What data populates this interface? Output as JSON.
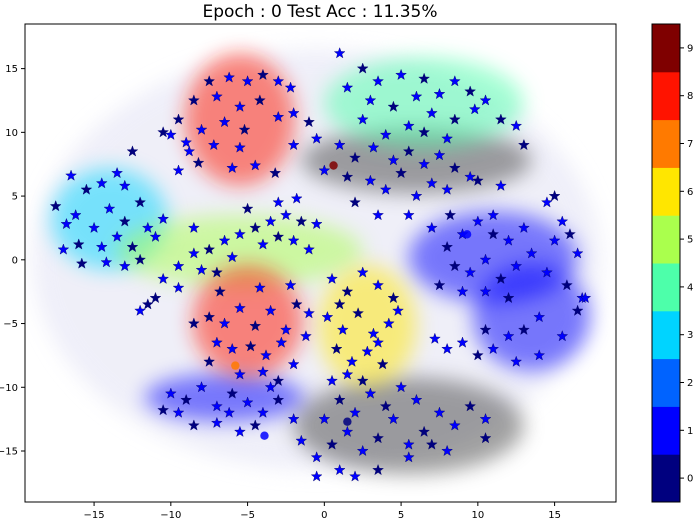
{
  "chart_data": {
    "type": "scatter",
    "title": "Epoch : 0  Test Acc : 11.35%",
    "xlabel": "",
    "ylabel": "",
    "xlim": [
      -19.5,
      19.0
    ],
    "ylim": [
      -19.0,
      18.5
    ],
    "xticks": [
      -15,
      -10,
      -5,
      0,
      5,
      10,
      15
    ],
    "yticks": [
      -15,
      -10,
      -5,
      0,
      5,
      10,
      15
    ],
    "colormap": "jet",
    "colorbar": {
      "ticks": [
        "0",
        "1",
        "2",
        "3",
        "4",
        "5",
        "6",
        "7",
        "8",
        "9"
      ],
      "colors": [
        "#00007f",
        "#0000ff",
        "#0063ff",
        "#00d4ff",
        "#4dffaa",
        "#aaff4d",
        "#ffe600",
        "#ff7a00",
        "#ff1300",
        "#7f0000"
      ]
    },
    "clusters": [
      {
        "label": 0,
        "color": "#00007f",
        "cx": 5.5,
        "cy": -13.0,
        "rx": 7.5,
        "ry": 3.8
      },
      {
        "label": 0,
        "color": "#00007f",
        "cx": 6.0,
        "cy": 7.8,
        "rx": 7.5,
        "ry": 2.6
      },
      {
        "label": 1,
        "color": "#0000ff",
        "cx": 11.0,
        "cy": 0.2,
        "rx": 5.5,
        "ry": 3.6
      },
      {
        "label": 1,
        "color": "#0000ff",
        "cx": 13.5,
        "cy": -4.5,
        "rx": 3.8,
        "ry": 4.2
      },
      {
        "label": 1,
        "color": "#0000ff",
        "cx": -6.5,
        "cy": -10.8,
        "rx": 5.2,
        "ry": 1.9
      },
      {
        "label": 3,
        "color": "#00d4ff",
        "cx": -14.0,
        "cy": 3.2,
        "rx": 3.8,
        "ry": 4.0
      },
      {
        "label": 4,
        "color": "#4dffaa",
        "cx": 6.5,
        "cy": 12.3,
        "rx": 6.5,
        "ry": 3.6
      },
      {
        "label": 5,
        "color": "#aaff4d",
        "cx": -5.5,
        "cy": 0.7,
        "rx": 8.0,
        "ry": 2.8
      },
      {
        "label": 6,
        "color": "#ffe600",
        "cx": 2.8,
        "cy": -5.2,
        "rx": 3.2,
        "ry": 4.8
      },
      {
        "label": 8,
        "color": "#ff1300",
        "cx": -5.5,
        "cy": 11.0,
        "rx": 3.6,
        "ry": 5.2
      },
      {
        "label": 8,
        "color": "#ff1300",
        "cx": -5.0,
        "cy": -4.8,
        "rx": 3.6,
        "ry": 4.4
      }
    ],
    "stars": [
      [
        -7.5,
        14.0
      ],
      [
        -6.2,
        14.3
      ],
      [
        -5.0,
        14.0
      ],
      [
        -4.0,
        14.5
      ],
      [
        -3.0,
        14.0
      ],
      [
        -2.2,
        13.5
      ],
      [
        -8.5,
        12.5
      ],
      [
        -7.0,
        12.8
      ],
      [
        -5.5,
        12.0
      ],
      [
        -4.2,
        12.5
      ],
      [
        -3.0,
        11.2
      ],
      [
        -2.0,
        11.5
      ],
      [
        -9.5,
        11.0
      ],
      [
        -8.0,
        10.2
      ],
      [
        -6.5,
        10.8
      ],
      [
        -5.2,
        10.2
      ],
      [
        -7.2,
        9.0
      ],
      [
        -9.0,
        9.2
      ],
      [
        -8.2,
        7.6
      ],
      [
        -6.0,
        7.2
      ],
      [
        -4.5,
        7.4
      ],
      [
        -3.2,
        6.8
      ],
      [
        -9.5,
        7.0
      ],
      [
        -10.0,
        9.8
      ],
      [
        -10.5,
        10.0
      ],
      [
        -8.8,
        8.5
      ],
      [
        -5.5,
        8.8
      ],
      [
        -15.5,
        5.5
      ],
      [
        -14.5,
        6.0
      ],
      [
        -13.0,
        5.8
      ],
      [
        -12.0,
        4.5
      ],
      [
        -14.0,
        4.0
      ],
      [
        -15.0,
        2.5
      ],
      [
        -13.0,
        3.0
      ],
      [
        -11.5,
        2.5
      ],
      [
        -10.5,
        3.2
      ],
      [
        -16.0,
        1.2
      ],
      [
        -14.5,
        1.0
      ],
      [
        -13.5,
        1.8
      ],
      [
        -12.5,
        1.0
      ],
      [
        -11.0,
        1.8
      ],
      [
        -17.0,
        0.8
      ],
      [
        -15.8,
        -0.3
      ],
      [
        -14.2,
        -0.2
      ],
      [
        -13.0,
        -0.5
      ],
      [
        -12.0,
        0.0
      ],
      [
        -16.8,
        2.8
      ],
      [
        -16.2,
        3.5
      ],
      [
        -17.5,
        4.2
      ],
      [
        -13.5,
        6.8
      ],
      [
        -16.5,
        6.6
      ],
      [
        -12.5,
        8.5
      ],
      [
        -9.5,
        -0.5
      ],
      [
        -8.5,
        0.5
      ],
      [
        -7.5,
        0.8
      ],
      [
        -6.5,
        1.5
      ],
      [
        -5.5,
        2.0
      ],
      [
        -4.5,
        2.5
      ],
      [
        -3.5,
        3.0
      ],
      [
        -2.5,
        3.5
      ],
      [
        -1.5,
        3.0
      ],
      [
        -0.5,
        2.8
      ],
      [
        -10.5,
        -1.5
      ],
      [
        -11.0,
        -3.0
      ],
      [
        -9.5,
        -2.2
      ],
      [
        -8.0,
        -0.8
      ],
      [
        -7.0,
        -1.0
      ],
      [
        -6.0,
        0.2
      ],
      [
        -4.0,
        1.2
      ],
      [
        -3.0,
        1.8
      ],
      [
        -2.0,
        1.5
      ],
      [
        -1.0,
        0.8
      ],
      [
        -5.0,
        4.0
      ],
      [
        -3.0,
        4.5
      ],
      [
        -1.8,
        4.8
      ],
      [
        -11.5,
        -3.5
      ],
      [
        -12.0,
        -4.0
      ],
      [
        -8.5,
        2.5
      ],
      [
        -7.5,
        -4.5
      ],
      [
        -6.5,
        -5.0
      ],
      [
        -5.5,
        -3.8
      ],
      [
        -4.5,
        -5.2
      ],
      [
        -3.5,
        -4.0
      ],
      [
        -2.5,
        -5.5
      ],
      [
        -1.8,
        -3.5
      ],
      [
        -7.0,
        -6.5
      ],
      [
        -6.0,
        -7.0
      ],
      [
        -4.8,
        -6.8
      ],
      [
        -3.8,
        -7.5
      ],
      [
        -2.8,
        -6.5
      ],
      [
        -7.5,
        -8.0
      ],
      [
        -5.5,
        -9.0
      ],
      [
        -4.0,
        -8.8
      ],
      [
        -3.0,
        -9.5
      ],
      [
        -2.0,
        -8.2
      ],
      [
        -1.2,
        -6.0
      ],
      [
        -6.8,
        -2.5
      ],
      [
        -4.2,
        -2.2
      ],
      [
        -2.2,
        -2.0
      ],
      [
        -8.5,
        -5.0
      ],
      [
        -1.0,
        -4.2
      ],
      [
        0.5,
        -1.5
      ],
      [
        1.5,
        -2.5
      ],
      [
        2.5,
        -1.0
      ],
      [
        3.5,
        -2.0
      ],
      [
        4.5,
        -3.0
      ],
      [
        0.2,
        -4.5
      ],
      [
        1.2,
        -5.5
      ],
      [
        2.2,
        -4.2
      ],
      [
        3.2,
        -5.8
      ],
      [
        4.2,
        -5.0
      ],
      [
        0.8,
        -7.0
      ],
      [
        1.8,
        -8.0
      ],
      [
        2.8,
        -7.2
      ],
      [
        3.8,
        -8.2
      ],
      [
        0.5,
        -9.5
      ],
      [
        1.5,
        -9.0
      ],
      [
        2.5,
        -9.5
      ],
      [
        3.5,
        -6.5
      ],
      [
        4.8,
        -4.0
      ],
      [
        1.0,
        -3.5
      ],
      [
        -0.5,
        9.5
      ],
      [
        1.0,
        9.0
      ],
      [
        2.0,
        8.0
      ],
      [
        3.2,
        8.8
      ],
      [
        4.5,
        7.8
      ],
      [
        5.5,
        8.5
      ],
      [
        6.5,
        7.5
      ],
      [
        7.5,
        8.2
      ],
      [
        8.5,
        7.2
      ],
      [
        9.5,
        6.5
      ],
      [
        0.0,
        7.0
      ],
      [
        1.5,
        6.5
      ],
      [
        3.0,
        6.2
      ],
      [
        4.0,
        5.5
      ],
      [
        5.0,
        6.8
      ],
      [
        6.0,
        5.0
      ],
      [
        7.0,
        6.0
      ],
      [
        2.0,
        4.5
      ],
      [
        3.5,
        3.5
      ],
      [
        5.5,
        3.5
      ],
      [
        -1.0,
        10.8
      ],
      [
        -2.0,
        9.0
      ],
      [
        8.0,
        5.5
      ],
      [
        10.0,
        6.2
      ],
      [
        11.5,
        5.8
      ],
      [
        1.0,
        16.2
      ],
      [
        2.5,
        15.0
      ],
      [
        3.5,
        14.0
      ],
      [
        5.0,
        14.5
      ],
      [
        6.5,
        14.2
      ],
      [
        7.5,
        13.0
      ],
      [
        8.5,
        14.0
      ],
      [
        9.5,
        13.2
      ],
      [
        1.5,
        13.5
      ],
      [
        3.0,
        12.5
      ],
      [
        4.5,
        12.0
      ],
      [
        6.0,
        12.8
      ],
      [
        7.0,
        11.5
      ],
      [
        8.5,
        11.0
      ],
      [
        9.8,
        11.8
      ],
      [
        10.5,
        12.5
      ],
      [
        11.5,
        11.0
      ],
      [
        12.5,
        10.5
      ],
      [
        5.5,
        10.5
      ],
      [
        6.5,
        10.0
      ],
      [
        8.0,
        9.5
      ],
      [
        2.5,
        11.0
      ],
      [
        13.0,
        9.0
      ],
      [
        4.0,
        9.8
      ],
      [
        7.0,
        2.5
      ],
      [
        8.0,
        1.0
      ],
      [
        9.0,
        2.0
      ],
      [
        10.0,
        3.0
      ],
      [
        11.0,
        2.0
      ],
      [
        12.0,
        1.5
      ],
      [
        13.0,
        2.5
      ],
      [
        8.5,
        -0.5
      ],
      [
        9.5,
        -1.0
      ],
      [
        10.5,
        0.0
      ],
      [
        11.5,
        -1.5
      ],
      [
        12.5,
        -0.5
      ],
      [
        13.5,
        0.5
      ],
      [
        7.5,
        -2.0
      ],
      [
        9.0,
        -2.5
      ],
      [
        10.5,
        -2.5
      ],
      [
        12.0,
        -3.0
      ],
      [
        14.5,
        -1.0
      ],
      [
        11.0,
        3.5
      ],
      [
        8.2,
        3.5
      ],
      [
        14.5,
        4.5
      ],
      [
        15.5,
        3.0
      ],
      [
        16.0,
        2.0
      ],
      [
        15.0,
        1.5
      ],
      [
        16.5,
        0.5
      ],
      [
        15.8,
        -2.0
      ],
      [
        16.8,
        -3.0
      ],
      [
        14.0,
        -4.5
      ],
      [
        13.0,
        -5.5
      ],
      [
        12.0,
        -6.0
      ],
      [
        11.0,
        -7.0
      ],
      [
        10.0,
        -7.5
      ],
      [
        9.0,
        -6.5
      ],
      [
        8.0,
        -7.0
      ],
      [
        10.5,
        -5.5
      ],
      [
        12.5,
        -8.0
      ],
      [
        15.5,
        -6.0
      ],
      [
        16.5,
        -4.0
      ],
      [
        17.0,
        -3.0
      ],
      [
        7.2,
        -6.2
      ],
      [
        15.0,
        5.0
      ],
      [
        14.0,
        -7.5
      ],
      [
        -10.0,
        -10.5
      ],
      [
        -9.0,
        -11.0
      ],
      [
        -8.0,
        -10.0
      ],
      [
        -7.0,
        -11.5
      ],
      [
        -6.0,
        -10.5
      ],
      [
        -5.0,
        -11.2
      ],
      [
        -4.0,
        -12.0
      ],
      [
        -3.0,
        -11.0
      ],
      [
        -2.0,
        -12.5
      ],
      [
        -9.5,
        -12.0
      ],
      [
        -8.5,
        -13.0
      ],
      [
        -7.0,
        -12.8
      ],
      [
        -5.5,
        -13.5
      ],
      [
        -4.5,
        -13.0
      ],
      [
        -3.5,
        -10.0
      ],
      [
        -1.5,
        -14.2
      ],
      [
        -10.5,
        -11.8
      ],
      [
        -6.2,
        -12.0
      ],
      [
        -0.5,
        -15.5
      ],
      [
        0.5,
        -14.5
      ],
      [
        1.5,
        -13.5
      ],
      [
        2.5,
        -15.0
      ],
      [
        3.5,
        -14.0
      ],
      [
        4.5,
        -12.5
      ],
      [
        5.5,
        -14.5
      ],
      [
        6.5,
        -13.5
      ],
      [
        7.5,
        -12.0
      ],
      [
        8.5,
        -13.0
      ],
      [
        9.5,
        -11.5
      ],
      [
        10.5,
        -12.5
      ],
      [
        0.0,
        -12.5
      ],
      [
        1.0,
        -11.0
      ],
      [
        2.0,
        -12.0
      ],
      [
        3.0,
        -10.5
      ],
      [
        4.0,
        -11.5
      ],
      [
        5.0,
        -10.0
      ],
      [
        6.0,
        -11.0
      ],
      [
        7.0,
        -14.5
      ],
      [
        -0.5,
        -17.0
      ],
      [
        1.0,
        -16.5
      ],
      [
        3.5,
        -16.5
      ],
      [
        5.5,
        -15.5
      ],
      [
        8.0,
        -15.0
      ],
      [
        10.5,
        -14.0
      ],
      [
        2.0,
        -17.0
      ]
    ],
    "circles": [
      {
        "x": 0.6,
        "y": 7.4,
        "color": "#7f0000"
      },
      {
        "x": 9.3,
        "y": 2.0,
        "color": "#0000ff"
      },
      {
        "x": 1.5,
        "y": -12.7,
        "color": "#00007f"
      },
      {
        "x": -3.9,
        "y": -13.8,
        "color": "#0000ff"
      },
      {
        "x": -5.8,
        "y": -8.3,
        "color": "#ff7a00"
      }
    ]
  }
}
